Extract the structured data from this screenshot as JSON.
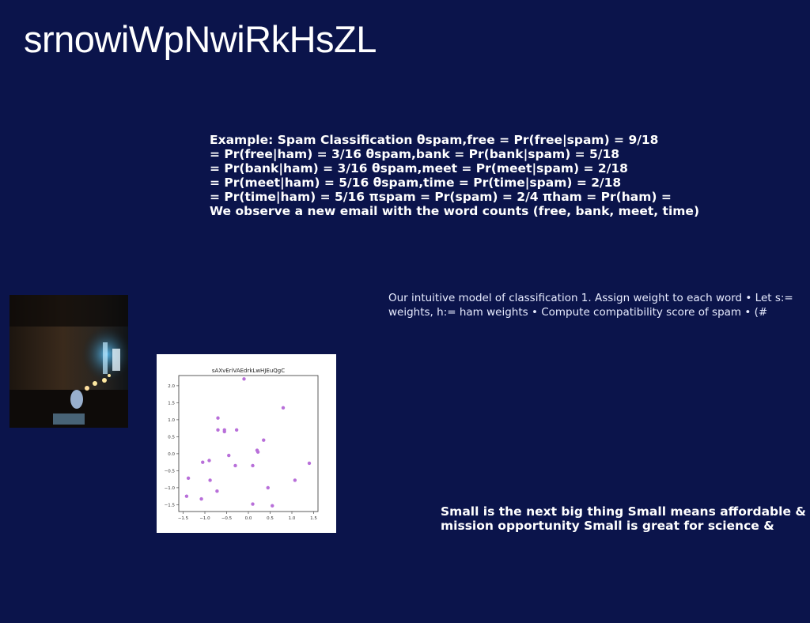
{
  "title": "srnowiWpNwiRkHsZL",
  "spam_example": {
    "lines": [
      "Example: Spam Classification θspam,free = Pr(free|spam) = 9/18",
      "= Pr(free|ham) = 3/16 θspam,bank = Pr(bank|spam) = 5/18",
      "= Pr(bank|ham) = 3/16 θspam,meet = Pr(meet|spam) = 2/18",
      "= Pr(meet|ham) = 5/16 θspam,time = Pr(time|spam) = 2/18",
      "= Pr(time|ham) = 5/16 πspam = Pr(spam) = 2/4 πham = Pr(ham) =",
      "We observe a new email with the word counts (free, bank, meet, time)"
    ]
  },
  "intuitive_model": {
    "lines": [
      "Our intuitive model of classification 1. Assign weight to each word • Let s:=",
      "weights, h:= ham weights • Compute compatibility score of spam • (#"
    ]
  },
  "small_thing": {
    "lines": [
      "Small is the next big thing Small means affordable &",
      "mission opportunity Small is great for science &"
    ]
  },
  "chart_data": {
    "type": "scatter",
    "title": "sAXvEriVAEdrkLwHJEuQgC",
    "xlim": [
      -1.6,
      1.6
    ],
    "ylim": [
      -1.7,
      2.3
    ],
    "xticks": [
      -1.5,
      -1.0,
      -0.5,
      0.0,
      0.5,
      1.0,
      1.5
    ],
    "yticks": [
      -1.5,
      -1.0,
      -0.5,
      0.0,
      0.5,
      1.0,
      1.5,
      2.0
    ],
    "tick_labels_x": [
      "−1.5",
      "−1.0",
      "−0.5",
      "0.0",
      "0.5",
      "1.0",
      "1.5"
    ],
    "tick_labels_y": [
      "−1.5",
      "−1.0",
      "−0.5",
      "0.0",
      "0.5",
      "1.0",
      "1.5",
      "2.0"
    ],
    "point_color": "#b86fd9",
    "grid": false,
    "points": [
      {
        "x": -0.1,
        "y": 2.2
      },
      {
        "x": 0.8,
        "y": 1.35
      },
      {
        "x": -0.7,
        "y": 1.05
      },
      {
        "x": -0.7,
        "y": 0.7
      },
      {
        "x": -0.55,
        "y": 0.65
      },
      {
        "x": -0.55,
        "y": 0.7
      },
      {
        "x": -0.27,
        "y": 0.7
      },
      {
        "x": 0.35,
        "y": 0.4
      },
      {
        "x": 0.2,
        "y": 0.1
      },
      {
        "x": 0.22,
        "y": 0.05
      },
      {
        "x": -0.45,
        "y": -0.05
      },
      {
        "x": -0.9,
        "y": -0.2
      },
      {
        "x": -1.05,
        "y": -0.25
      },
      {
        "x": -0.3,
        "y": -0.35
      },
      {
        "x": 0.1,
        "y": -0.35
      },
      {
        "x": 1.4,
        "y": -0.28
      },
      {
        "x": -1.38,
        "y": -0.72
      },
      {
        "x": -0.88,
        "y": -0.78
      },
      {
        "x": 1.07,
        "y": -0.78
      },
      {
        "x": 0.45,
        "y": -1.0
      },
      {
        "x": -0.72,
        "y": -1.1
      },
      {
        "x": -1.42,
        "y": -1.25
      },
      {
        "x": -1.08,
        "y": -1.33
      },
      {
        "x": 0.1,
        "y": -1.48
      },
      {
        "x": 0.55,
        "y": -1.53
      }
    ]
  }
}
